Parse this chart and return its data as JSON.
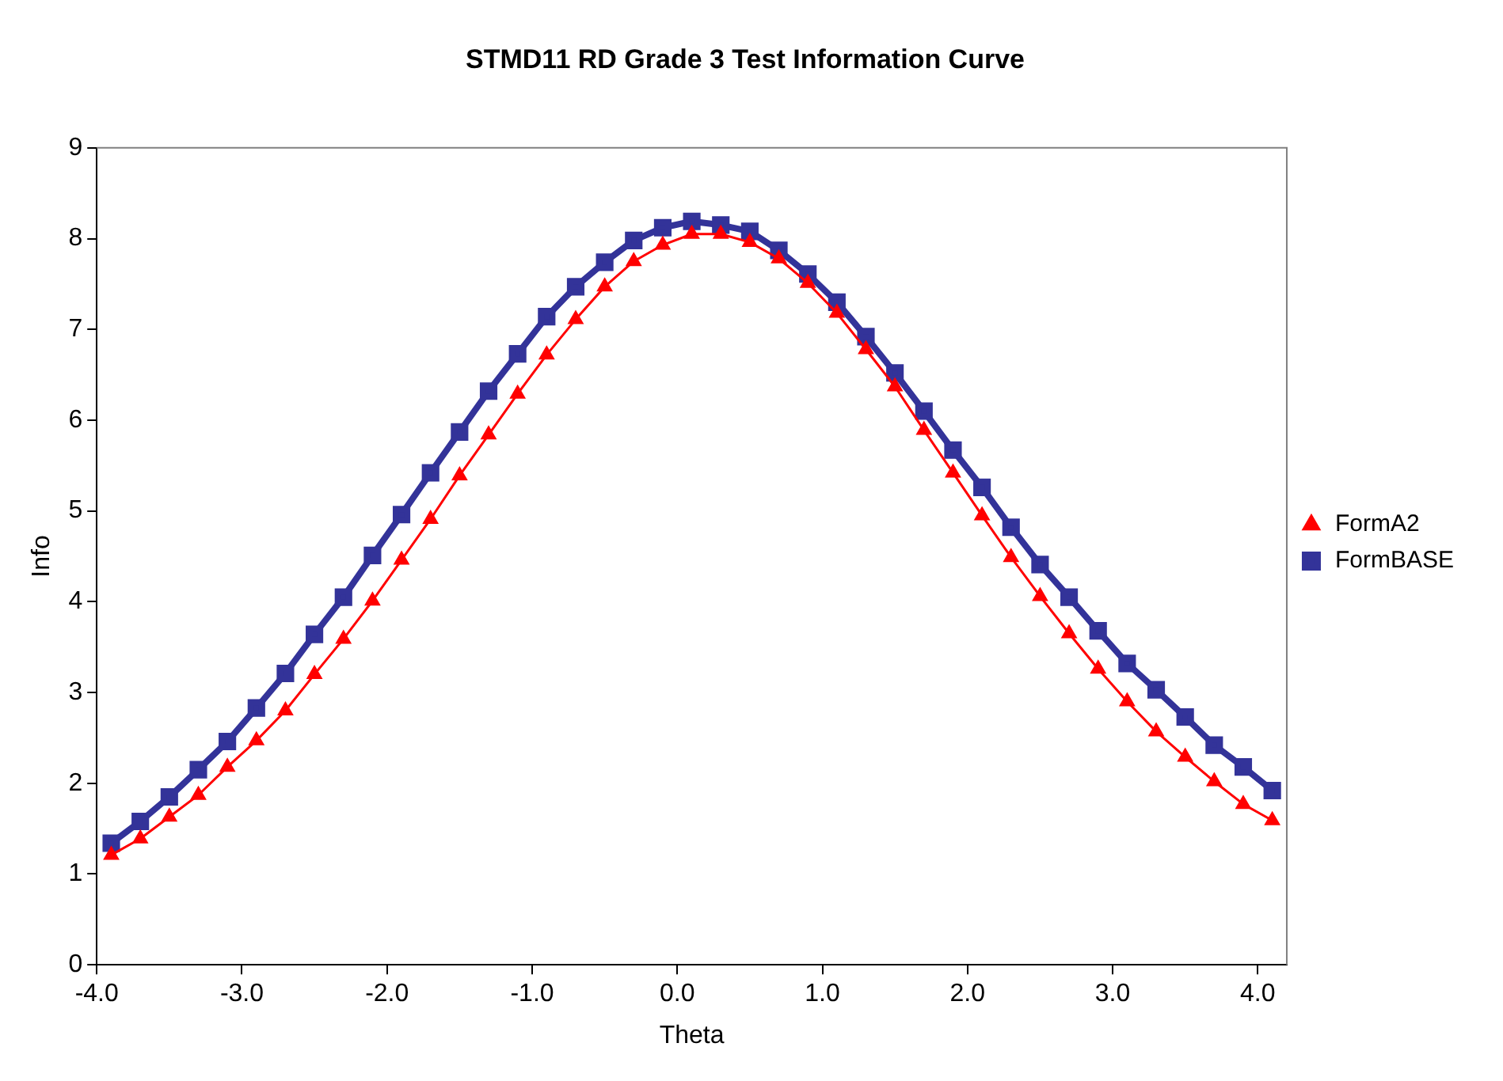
{
  "chart_data": {
    "type": "line",
    "title": "STMD11 RD Grade 3 Test Information Curve",
    "xlabel": "Theta",
    "ylabel": "Info",
    "x": [
      -3.9,
      -3.7,
      -3.5,
      -3.3,
      -3.1,
      -2.9,
      -2.7,
      -2.5,
      -2.3,
      -2.1,
      -1.9,
      -1.7,
      -1.5,
      -1.3,
      -1.1,
      -0.9,
      -0.7,
      -0.5,
      -0.3,
      -0.1,
      0.1,
      0.3,
      0.5,
      0.7,
      0.9,
      1.1,
      1.3,
      1.5,
      1.7,
      1.9,
      2.1,
      2.3,
      2.5,
      2.7,
      2.9,
      3.1,
      3.3,
      3.5,
      3.7,
      3.9,
      4.1
    ],
    "series": [
      {
        "name": "FormA2",
        "color": "#ff0000",
        "marker": "triangle",
        "values": [
          1.21,
          1.39,
          1.63,
          1.87,
          2.18,
          2.47,
          2.8,
          3.2,
          3.59,
          4.01,
          4.46,
          4.91,
          5.39,
          5.84,
          6.29,
          6.72,
          7.11,
          7.47,
          7.75,
          7.93,
          8.05,
          8.05,
          7.96,
          7.78,
          7.51,
          7.18,
          6.78,
          6.37,
          5.89,
          5.42,
          4.95,
          4.49,
          4.06,
          3.65,
          3.26,
          2.9,
          2.57,
          2.29,
          2.02,
          1.77,
          1.59
        ]
      },
      {
        "name": "FormBASE",
        "color": "#333399",
        "marker": "square",
        "values": [
          1.34,
          1.58,
          1.85,
          2.15,
          2.46,
          2.83,
          3.21,
          3.64,
          4.05,
          4.51,
          4.96,
          5.42,
          5.87,
          6.32,
          6.73,
          7.14,
          7.47,
          7.74,
          7.98,
          8.12,
          8.19,
          8.15,
          8.08,
          7.87,
          7.61,
          7.3,
          6.92,
          6.52,
          6.1,
          5.67,
          5.26,
          4.82,
          4.41,
          4.05,
          3.68,
          3.32,
          3.03,
          2.73,
          2.42,
          2.18,
          1.92
        ]
      }
    ],
    "xlim": [
      -4,
      4.2
    ],
    "xticks": [
      {
        "value": -4,
        "label": "-4.0"
      },
      {
        "value": -3,
        "label": "-3.0"
      },
      {
        "value": -2,
        "label": "-2.0"
      },
      {
        "value": -1,
        "label": "-1.0"
      },
      {
        "value": 0,
        "label": "0.0"
      },
      {
        "value": 1,
        "label": "1.0"
      },
      {
        "value": 2,
        "label": "2.0"
      },
      {
        "value": 3,
        "label": "3.0"
      },
      {
        "value": 4,
        "label": "4.0"
      }
    ],
    "ylim": [
      0,
      9
    ],
    "yticks": [
      0,
      1,
      2,
      3,
      4,
      5,
      6,
      7,
      8,
      9
    ],
    "grid": false,
    "legend": "right",
    "line_style": "solid"
  }
}
